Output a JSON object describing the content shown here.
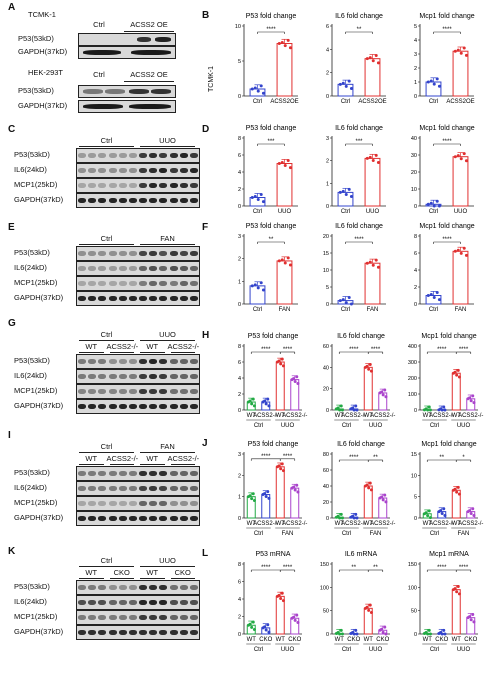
{
  "panels": {
    "A": {
      "letter": "A",
      "blocks": [
        {
          "title": "TCMK-1",
          "headers": [
            "Ctrl",
            "ACSS2 OE"
          ],
          "rows": [
            "P53(53kD)",
            "GAPDH(37kD)"
          ]
        },
        {
          "title": "HEK-293T",
          "headers": [
            "Ctrl",
            "ACSS2 OE"
          ],
          "rows": [
            "P53(53kD)",
            "GAPDH(37kD)"
          ]
        }
      ]
    },
    "C": {
      "letter": "C",
      "groups": [
        "Ctrl",
        "UUO"
      ],
      "rows": [
        "P53(53kD)",
        "IL6(24kD)",
        "MCP1(25kD)",
        "GAPDH(37kD)"
      ]
    },
    "E": {
      "letter": "E",
      "groups": [
        "Ctrl",
        "FAN"
      ],
      "rows": [
        "P53(53kD)",
        "IL6(24kD)",
        "MCP1(25kD)",
        "GAPDH(37kD)"
      ]
    },
    "G": {
      "letter": "G",
      "groups": [
        "Ctrl",
        "UUO"
      ],
      "subgroups": [
        "WT",
        "ACSS2-/-",
        "WT",
        "ACSS2-/-"
      ],
      "rows": [
        "P53(53kD)",
        "IL6(24kD)",
        "MCP1(25kD)",
        "GAPDH(37kD)"
      ]
    },
    "I": {
      "letter": "I",
      "groups": [
        "Ctrl",
        "FAN"
      ],
      "subgroups": [
        "WT",
        "ACSS2-/-",
        "WT",
        "ACSS2-/-"
      ],
      "rows": [
        "P53(53kD)",
        "IL6(24kD)",
        "MCP1(25kD)",
        "GAPDH(37kD)"
      ]
    },
    "K": {
      "letter": "K",
      "groups": [
        "Ctrl",
        "UUO"
      ],
      "subgroups": [
        "WT",
        "CKO",
        "WT",
        "CKO"
      ],
      "rows": [
        "P53(53kD)",
        "IL6(24kD)",
        "MCP1(25kD)",
        "GAPDH(37kD)"
      ]
    },
    "B": {
      "letter": "B",
      "side_label": "TCMK-1"
    },
    "D": {
      "letter": "D"
    },
    "F": {
      "letter": "F"
    },
    "H": {
      "letter": "H"
    },
    "J": {
      "letter": "J"
    },
    "L": {
      "letter": "L"
    }
  },
  "colors": {
    "ctrl": "#3344cc",
    "treat": "#e03030",
    "wt_ctrl": "#22aa44",
    "ko_ctrl": "#3344cc",
    "wt_treat": "#e03030",
    "ko_treat": "#aa44cc"
  },
  "chart_data": [
    {
      "id": "B1",
      "type": "bar",
      "title": "P53 fold change",
      "categories": [
        "Ctrl",
        "ACSS2OE"
      ],
      "values": [
        1.0,
        7.5
      ],
      "ylim": [
        0,
        10
      ],
      "yticks": [
        0,
        5,
        10
      ],
      "sig": [
        {
          "a": 0,
          "b": 1,
          "label": "****"
        }
      ]
    },
    {
      "id": "B2",
      "type": "bar",
      "title": "IL6 fold change",
      "categories": [
        "Ctrl",
        "ACSS2OE"
      ],
      "values": [
        1.0,
        3.2
      ],
      "ylim": [
        0,
        6
      ],
      "yticks": [
        0,
        2,
        4,
        6
      ],
      "sig": [
        {
          "a": 0,
          "b": 1,
          "label": "**"
        }
      ]
    },
    {
      "id": "B3",
      "type": "bar",
      "title": "Mcp1 fold change",
      "categories": [
        "Ctrl",
        "ACSS2OE"
      ],
      "values": [
        1.0,
        3.2
      ],
      "ylim": [
        0,
        5
      ],
      "yticks": [
        0,
        1,
        2,
        3,
        4,
        5
      ],
      "sig": [
        {
          "a": 0,
          "b": 1,
          "label": "****"
        }
      ]
    },
    {
      "id": "D1",
      "type": "bar",
      "title": "P53 fold change",
      "categories": [
        "Ctrl",
        "UUO"
      ],
      "values": [
        1.0,
        5.0
      ],
      "ylim": [
        0,
        8
      ],
      "yticks": [
        0,
        2,
        4,
        6,
        8
      ],
      "sig": [
        {
          "a": 0,
          "b": 1,
          "label": "***"
        }
      ]
    },
    {
      "id": "D2",
      "type": "bar",
      "title": "IL6 fold change",
      "categories": [
        "Ctrl",
        "UUO"
      ],
      "values": [
        0.6,
        2.1
      ],
      "ylim": [
        0,
        3
      ],
      "yticks": [
        0,
        1,
        2,
        3
      ],
      "sig": [
        {
          "a": 0,
          "b": 1,
          "label": "***"
        }
      ]
    },
    {
      "id": "D3",
      "type": "bar",
      "title": "Mcp1 fold change",
      "categories": [
        "Ctrl",
        "UUO"
      ],
      "values": [
        1.0,
        29
      ],
      "ylim": [
        0,
        40
      ],
      "yticks": [
        0,
        10,
        20,
        30,
        40
      ],
      "sig": [
        {
          "a": 0,
          "b": 1,
          "label": "****"
        }
      ]
    },
    {
      "id": "F1",
      "type": "bar",
      "title": "P53 fold change",
      "categories": [
        "Ctrl",
        "FAN"
      ],
      "values": [
        0.8,
        1.9
      ],
      "ylim": [
        0,
        3
      ],
      "yticks": [
        0,
        1,
        2,
        3
      ],
      "sig": [
        {
          "a": 0,
          "b": 1,
          "label": "**"
        }
      ]
    },
    {
      "id": "F2",
      "type": "bar",
      "title": "IL6 fold change",
      "categories": [
        "Ctrl",
        "FAN"
      ],
      "values": [
        1.0,
        12
      ],
      "ylim": [
        0,
        20
      ],
      "yticks": [
        0,
        5,
        10,
        15,
        20
      ],
      "sig": [
        {
          "a": 0,
          "b": 1,
          "label": "****"
        }
      ]
    },
    {
      "id": "F3",
      "type": "bar",
      "title": "Mcp1 fold change",
      "categories": [
        "Ctrl",
        "FAN"
      ],
      "values": [
        1.0,
        6.2
      ],
      "ylim": [
        0,
        8
      ],
      "yticks": [
        0,
        2,
        4,
        6,
        8
      ],
      "sig": [
        {
          "a": 0,
          "b": 1,
          "label": "****"
        }
      ]
    },
    {
      "id": "H1",
      "type": "bar",
      "title": "P53 fold change",
      "categories": [
        "WT",
        "ACSS2-/-",
        "WT",
        "ACSS2-/-"
      ],
      "groups": [
        "Ctrl",
        "UUO"
      ],
      "values": [
        1.0,
        1.0,
        6.0,
        3.8
      ],
      "ylim": [
        0,
        8
      ],
      "yticks": [
        0,
        2,
        4,
        6,
        8
      ],
      "sig": [
        {
          "a": 0,
          "b": 2,
          "label": "****"
        },
        {
          "a": 2,
          "b": 3,
          "label": "****"
        }
      ]
    },
    {
      "id": "H2",
      "type": "bar",
      "title": "IL6 fold change",
      "categories": [
        "WT",
        "ACSS2-/-",
        "WT",
        "ACSS2-/-"
      ],
      "groups": [
        "Ctrl",
        "UUO"
      ],
      "values": [
        1.0,
        1.0,
        40,
        16
      ],
      "ylim": [
        0,
        60
      ],
      "yticks": [
        0,
        20,
        40,
        60
      ],
      "sig": [
        {
          "a": 0,
          "b": 2,
          "label": "****"
        },
        {
          "a": 2,
          "b": 3,
          "label": "****"
        }
      ]
    },
    {
      "id": "H3",
      "type": "bar",
      "title": "Mcp1 fold change",
      "categories": [
        "WT",
        "ACSS2-/-",
        "WT",
        "ACSS2-/-"
      ],
      "groups": [
        "Ctrl",
        "UUO"
      ],
      "values": [
        1.0,
        1.0,
        230,
        70
      ],
      "ylim": [
        0,
        400
      ],
      "yticks": [
        0,
        100,
        200,
        300,
        400
      ],
      "sig": [
        {
          "a": 0,
          "b": 2,
          "label": "****"
        },
        {
          "a": 2,
          "b": 3,
          "label": "****"
        }
      ]
    },
    {
      "id": "J1",
      "type": "bar",
      "title": "P53 fold change",
      "categories": [
        "WT",
        "ACSS2-/-",
        "WT",
        "ACSS2-/-"
      ],
      "groups": [
        "Ctrl",
        "FAN"
      ],
      "values": [
        1.0,
        1.1,
        2.4,
        1.4
      ],
      "ylim": [
        0,
        3
      ],
      "yticks": [
        0,
        1,
        2,
        3
      ],
      "sig": [
        {
          "a": 0,
          "b": 2,
          "label": "****"
        },
        {
          "a": 2,
          "b": 3,
          "label": "****"
        }
      ]
    },
    {
      "id": "J2",
      "type": "bar",
      "title": "IL6 fold change",
      "categories": [
        "WT",
        "ACSS2-/-",
        "WT",
        "ACSS2-/-"
      ],
      "groups": [
        "Ctrl",
        "FAN"
      ],
      "values": [
        1.0,
        1.0,
        40,
        25
      ],
      "ylim": [
        0,
        80
      ],
      "yticks": [
        0,
        20,
        40,
        60,
        80
      ],
      "sig": [
        {
          "a": 0,
          "b": 2,
          "label": "****"
        },
        {
          "a": 2,
          "b": 3,
          "label": "**"
        }
      ]
    },
    {
      "id": "J3",
      "type": "bar",
      "title": "Mcp1 fold change",
      "categories": [
        "WT",
        "ACSS2-/-",
        "WT",
        "ACSS2-/-"
      ],
      "groups": [
        "Ctrl",
        "FAN"
      ],
      "values": [
        1.0,
        1.5,
        6.5,
        1.5
      ],
      "ylim": [
        0,
        15
      ],
      "yticks": [
        0,
        5,
        10,
        15
      ],
      "sig": [
        {
          "a": 0,
          "b": 2,
          "label": "**"
        },
        {
          "a": 2,
          "b": 3,
          "label": "*"
        }
      ]
    },
    {
      "id": "L1",
      "type": "bar",
      "title": "P53 mRNA",
      "categories": [
        "WT",
        "CKO",
        "WT",
        "CKO"
      ],
      "groups": [
        "Ctrl",
        "UUO"
      ],
      "values": [
        1.0,
        0.7,
        4.3,
        1.8
      ],
      "ylim": [
        0,
        8
      ],
      "yticks": [
        0,
        2,
        4,
        6,
        8
      ],
      "sig": [
        {
          "a": 0,
          "b": 2,
          "label": "****"
        },
        {
          "a": 2,
          "b": 3,
          "label": "****"
        }
      ]
    },
    {
      "id": "L2",
      "type": "bar",
      "title": "IL6 mRNA",
      "categories": [
        "WT",
        "CKO",
        "WT",
        "CKO"
      ],
      "groups": [
        "Ctrl",
        "UUO"
      ],
      "values": [
        1.0,
        1.0,
        55,
        8
      ],
      "ylim": [
        0,
        150
      ],
      "yticks": [
        0,
        50,
        100,
        150
      ],
      "sig": [
        {
          "a": 0,
          "b": 2,
          "label": "**"
        },
        {
          "a": 2,
          "b": 3,
          "label": "**"
        }
      ]
    },
    {
      "id": "L3",
      "type": "bar",
      "title": "Mcp1 mRNA",
      "categories": [
        "WT",
        "CKO",
        "WT",
        "CKO"
      ],
      "groups": [
        "Ctrl",
        "UUO"
      ],
      "values": [
        1.0,
        1.0,
        95,
        35
      ],
      "ylim": [
        0,
        150
      ],
      "yticks": [
        0,
        50,
        100,
        150
      ],
      "sig": [
        {
          "a": 0,
          "b": 2,
          "label": "****"
        },
        {
          "a": 2,
          "b": 3,
          "label": "****"
        }
      ]
    }
  ]
}
